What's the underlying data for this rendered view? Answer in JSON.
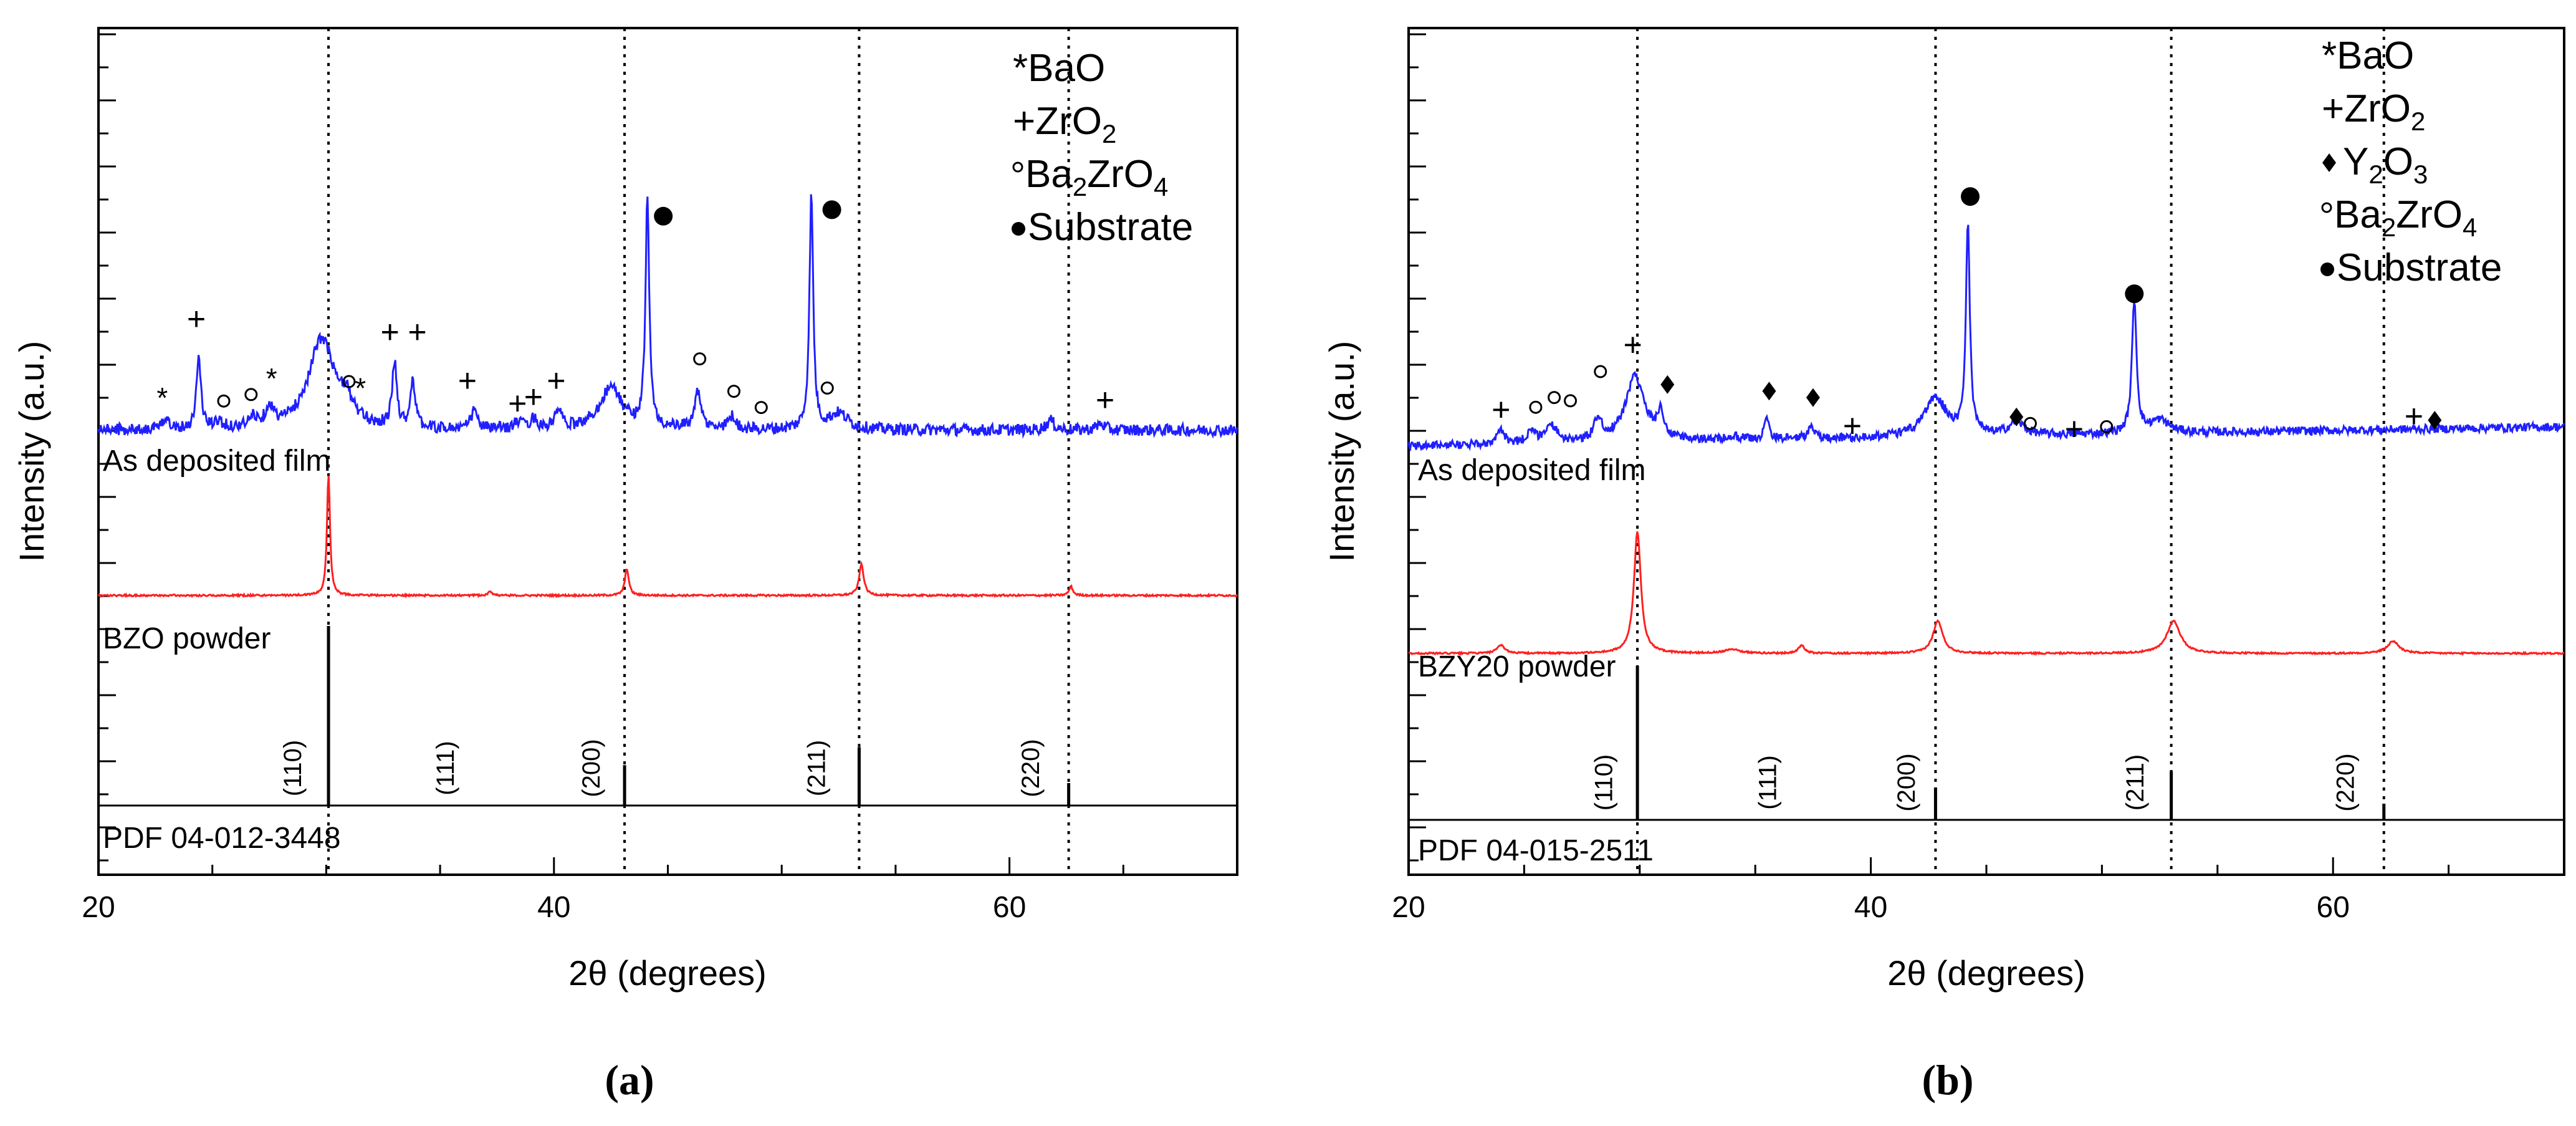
{
  "chart_data": [
    {
      "panel": "(a)",
      "type": "line",
      "xlabel": "2θ (degrees)",
      "ylabel": "Intensity (a.u.)",
      "xlim": [
        20,
        70
      ],
      "xticks": [
        "20",
        "40",
        "60"
      ],
      "legend": [
        {
          "symbol": "*",
          "text": "BaO"
        },
        {
          "symbol": "+",
          "text": "ZrO",
          "sub": "2"
        },
        {
          "symbol": "○",
          "text": "Ba",
          "sub": "2",
          "text2": "ZrO",
          "sub2": "4"
        },
        {
          "symbol": "●",
          "text": "Substrate"
        }
      ],
      "series": [
        {
          "name": "As deposited film",
          "color": "#1f1fff",
          "baseline": 70,
          "noise": 1.8,
          "peaks": [
            [
              23.0,
              4,
              0.15
            ],
            [
              24.4,
              22,
              0.12
            ],
            [
              25.3,
              2,
              0.2
            ],
            [
              26.8,
              3,
              0.2
            ],
            [
              27.5,
              6,
              0.2
            ],
            [
              29.8,
              28,
              0.7
            ],
            [
              30.9,
              6,
              0.3
            ],
            [
              33.0,
              20,
              0.12
            ],
            [
              33.8,
              15,
              0.12
            ],
            [
              36.5,
              6,
              0.15
            ],
            [
              38.4,
              2,
              0.2
            ],
            [
              39.1,
              3,
              0.2
            ],
            [
              40.2,
              6,
              0.15
            ],
            [
              42.5,
              13,
              0.6
            ],
            [
              44.1,
              70,
              0.1
            ],
            [
              46.3,
              11,
              0.18
            ],
            [
              47.8,
              4,
              0.2
            ],
            [
              51.3,
              72,
              0.1
            ],
            [
              52.5,
              5,
              0.5
            ],
            [
              61.8,
              3,
              0.2
            ],
            [
              64.0,
              2,
              0.2
            ]
          ]
        },
        {
          "name": "BZO powder",
          "color": "#ff1f1f",
          "baseline": 24,
          "noise": 0.2,
          "peaks": [
            [
              30.1,
              27,
              0.08
            ],
            [
              37.2,
              1,
              0.1
            ],
            [
              43.2,
              6,
              0.1
            ],
            [
              53.5,
              7,
              0.12
            ],
            [
              62.7,
              2,
              0.1
            ]
          ]
        },
        {
          "name": "PDF 04-012-3448",
          "color": "#000000",
          "baseline": 0,
          "noise": 0,
          "sticks": [
            [
              30.1,
              40
            ],
            [
              43.1,
              9
            ],
            [
              53.4,
              13
            ],
            [
              62.6,
              5
            ]
          ],
          "hkl": [
            [
              28.9,
              "(110)"
            ],
            [
              35.6,
              "(111)"
            ],
            [
              42.0,
              "(200)"
            ],
            [
              51.9,
              "(211)"
            ],
            [
              61.3,
              "(220)"
            ]
          ]
        }
      ],
      "annotations": [
        {
          "symbol": "*",
          "x": 22.8,
          "y": 76
        },
        {
          "symbol": "+",
          "x": 24.3,
          "y": 100
        },
        {
          "symbol": "○",
          "x": 25.5,
          "y": 75
        },
        {
          "symbol": "○",
          "x": 26.7,
          "y": 77
        },
        {
          "symbol": "*",
          "x": 27.6,
          "y": 82
        },
        {
          "symbol": "○",
          "x": 31.0,
          "y": 81
        },
        {
          "symbol": "*",
          "x": 31.5,
          "y": 79
        },
        {
          "symbol": "+",
          "x": 32.8,
          "y": 96
        },
        {
          "symbol": "+",
          "x": 34.0,
          "y": 96
        },
        {
          "symbol": "+",
          "x": 36.2,
          "y": 81
        },
        {
          "symbol": "+",
          "x": 38.4,
          "y": 74
        },
        {
          "symbol": "+",
          "x": 39.1,
          "y": 76
        },
        {
          "symbol": "+",
          "x": 40.1,
          "y": 81
        },
        {
          "symbol": "●",
          "x": 44.8,
          "y": 132
        },
        {
          "symbol": "○",
          "x": 46.4,
          "y": 88
        },
        {
          "symbol": "○",
          "x": 47.9,
          "y": 78
        },
        {
          "symbol": "○",
          "x": 49.1,
          "y": 73
        },
        {
          "symbol": "○",
          "x": 52.0,
          "y": 79
        },
        {
          "symbol": "●",
          "x": 52.2,
          "y": 134
        },
        {
          "symbol": "+",
          "x": 64.2,
          "y": 75
        }
      ]
    },
    {
      "panel": "(b)",
      "type": "line",
      "xlabel": "2θ (degrees)",
      "ylabel": "Intensity (a.u.)",
      "xlim": [
        20,
        70
      ],
      "xticks": [
        "20",
        "40",
        "60"
      ],
      "legend": [
        {
          "symbol": "*",
          "text": "BaO"
        },
        {
          "symbol": "+",
          "text": "ZrO",
          "sub": "2"
        },
        {
          "symbol": "♦",
          "text": " Y",
          "sub": "2",
          "text2": "O",
          "sub2": "3"
        },
        {
          "symbol": "○",
          "text": "Ba",
          "sub": "2",
          "text2": "ZrO",
          "sub2": "4"
        },
        {
          "symbol": "●",
          "text": "Substrate"
        }
      ],
      "series": [
        {
          "name": "As deposited film",
          "color": "#1f1fff",
          "baseline": 66,
          "noise": 1.3,
          "peaks": [
            [
              24.0,
              4,
              0.2
            ],
            [
              25.3,
              4,
              0.2
            ],
            [
              26.2,
              5,
              0.3
            ],
            [
              28.2,
              7,
              0.2
            ],
            [
              29.8,
              20,
              0.5
            ],
            [
              30.9,
              8,
              0.15
            ],
            [
              34.0,
              1,
              0.4
            ],
            [
              35.5,
              7,
              0.12
            ],
            [
              37.4,
              4,
              0.15
            ],
            [
              42.8,
              12,
              0.6
            ],
            [
              44.2,
              65,
              0.1
            ],
            [
              46.3,
              4,
              0.4
            ],
            [
              51.4,
              41,
              0.12
            ],
            [
              52.5,
              4,
              0.5
            ]
          ],
          "slope": 0.12
        },
        {
          "name": "BZY20 powder",
          "color": "#ff1f1f",
          "baseline": 26,
          "noise": 0.2,
          "peaks": [
            [
              24.0,
              2,
              0.2
            ],
            [
              29.9,
              30,
              0.18
            ],
            [
              34.0,
              1,
              0.4
            ],
            [
              37.0,
              2,
              0.15
            ],
            [
              42.9,
              8,
              0.25
            ],
            [
              53.1,
              8,
              0.35
            ],
            [
              62.6,
              3,
              0.3
            ]
          ]
        },
        {
          "name": "PDF 04-015-2511",
          "color": "#000000",
          "baseline": 0,
          "noise": 0,
          "sticks": [
            [
              29.9,
              38
            ],
            [
              42.8,
              8
            ],
            [
              53.0,
              12
            ],
            [
              62.2,
              4
            ]
          ],
          "hkl": [
            [
              28.8,
              "(110)"
            ],
            [
              35.9,
              "(111)"
            ],
            [
              41.9,
              "(200)"
            ],
            [
              51.8,
              "(211)"
            ],
            [
              60.9,
              "(220)"
            ]
          ]
        }
      ],
      "annotations": [
        {
          "symbol": "+",
          "x": 24.0,
          "y": 74
        },
        {
          "symbol": "○",
          "x": 25.5,
          "y": 75
        },
        {
          "symbol": "○",
          "x": 26.3,
          "y": 78
        },
        {
          "symbol": "○",
          "x": 27.0,
          "y": 77
        },
        {
          "symbol": "○",
          "x": 28.3,
          "y": 86
        },
        {
          "symbol": "+",
          "x": 29.7,
          "y": 94
        },
        {
          "symbol": "♦",
          "x": 31.2,
          "y": 82
        },
        {
          "symbol": "♦",
          "x": 35.6,
          "y": 80
        },
        {
          "symbol": "♦",
          "x": 37.5,
          "y": 78
        },
        {
          "symbol": "+",
          "x": 39.2,
          "y": 69
        },
        {
          "symbol": "●",
          "x": 44.3,
          "y": 140
        },
        {
          "symbol": "♦",
          "x": 46.3,
          "y": 72
        },
        {
          "symbol": "○",
          "x": 46.9,
          "y": 70
        },
        {
          "symbol": "+",
          "x": 48.8,
          "y": 68
        },
        {
          "symbol": "○",
          "x": 50.2,
          "y": 69
        },
        {
          "symbol": "●",
          "x": 51.4,
          "y": 110
        },
        {
          "symbol": "+",
          "x": 63.5,
          "y": 72
        },
        {
          "symbol": "♦",
          "x": 64.4,
          "y": 71
        }
      ]
    }
  ]
}
